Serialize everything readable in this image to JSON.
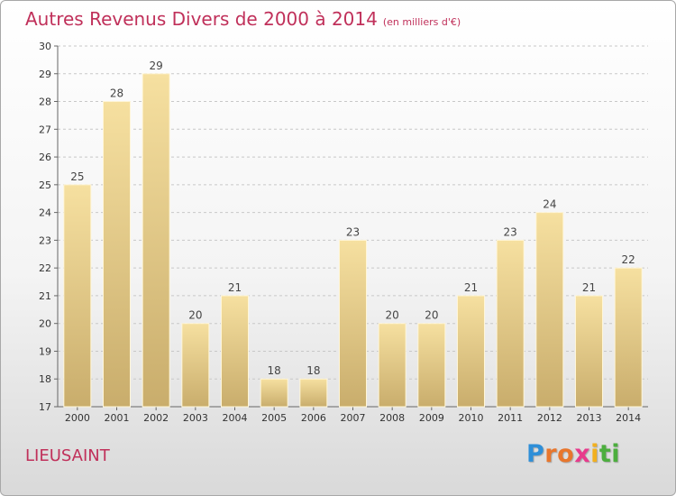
{
  "title": "Autres Revenus Divers de 2000 à 2014",
  "subtitle": "(en milliers d'€)",
  "location": "LIEUSAINT",
  "brand": {
    "letters": [
      "P",
      "r",
      "o",
      "x",
      "i",
      "t",
      "i"
    ],
    "colors": [
      "#2f8fd8",
      "#e8762c",
      "#e8762c",
      "#e83a8c",
      "#f2b01e",
      "#4cae3e",
      "#4cae3e"
    ]
  },
  "colors": {
    "accent": "#c0305a",
    "bar_light": "#f6e0a0",
    "bar_dark": "#c9ad6c"
  },
  "chart_data": {
    "type": "bar",
    "title": "Autres Revenus Divers de 2000 à 2014",
    "subtitle": "(en milliers d'€)",
    "xlabel": "",
    "ylabel": "",
    "categories": [
      "2000",
      "2001",
      "2002",
      "2003",
      "2004",
      "2005",
      "2006",
      "2007",
      "2008",
      "2009",
      "2010",
      "2011",
      "2012",
      "2013",
      "2014"
    ],
    "values": [
      25,
      28,
      29,
      20,
      21,
      18,
      18,
      23,
      20,
      20,
      21,
      23,
      24,
      21,
      22
    ],
    "ylim": [
      17,
      30
    ],
    "yticks": [
      17,
      18,
      19,
      20,
      21,
      22,
      23,
      24,
      25,
      26,
      27,
      28,
      29,
      30
    ],
    "grid": true,
    "legend": "none"
  }
}
